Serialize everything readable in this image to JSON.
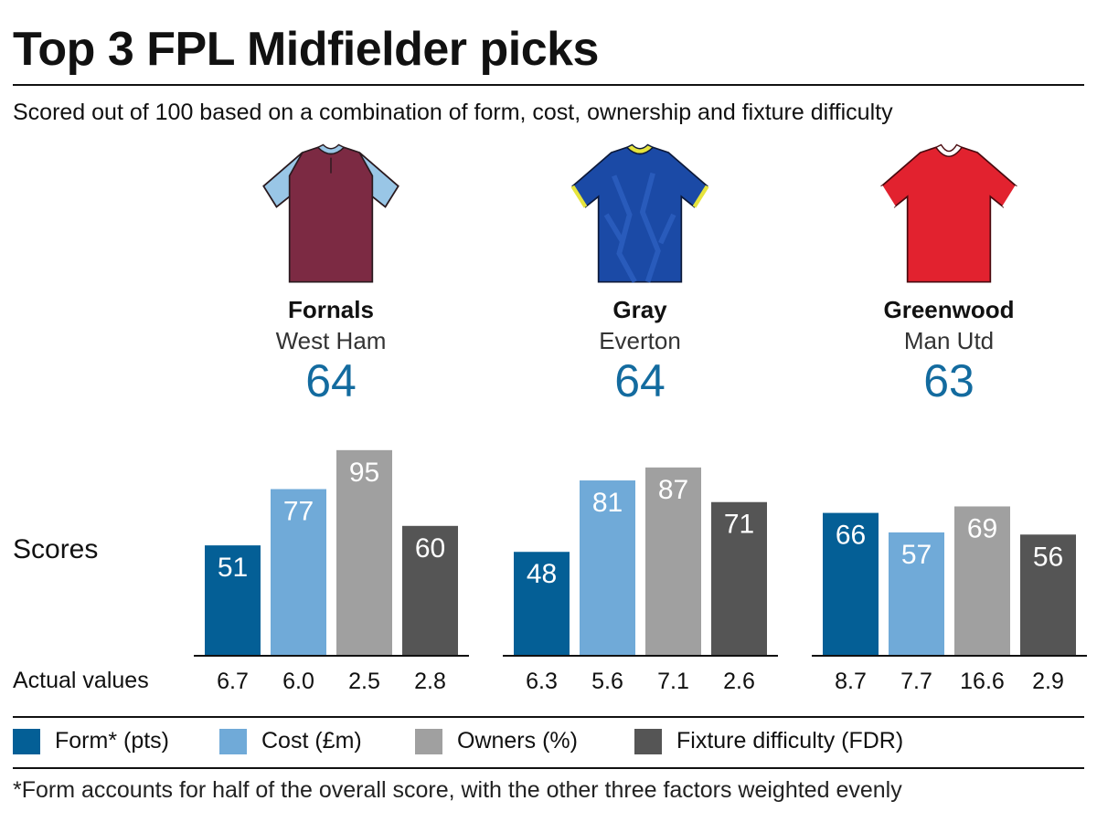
{
  "title": "Top 3 FPL Midfielder picks",
  "subtitle": "Scored out of 100 based on a combination of form, cost, ownership and fixture difficulty",
  "players": [
    {
      "name": "Fornals",
      "team": "West Ham",
      "score": "64",
      "shirt": "west-ham-shirt"
    },
    {
      "name": "Gray",
      "team": "Everton",
      "score": "64",
      "shirt": "everton-shirt"
    },
    {
      "name": "Greenwood",
      "team": "Man Utd",
      "score": "63",
      "shirt": "man-utd-shirt"
    }
  ],
  "row_labels": {
    "scores": "Scores",
    "actual": "Actual values"
  },
  "colors": {
    "form": "#045f96",
    "cost": "#70aad8",
    "owners": "#a0a0a0",
    "fixture": "#555555",
    "accent": "#136b9f",
    "west_ham": "#7c2a43",
    "west_ham_sleeve": "#99c6e6",
    "everton": "#1b4aa6",
    "everton_trim": "#e6e43d",
    "man_utd": "#e2222f"
  },
  "legend": [
    {
      "key": "form",
      "label": "Form* (pts)"
    },
    {
      "key": "cost",
      "label": "Cost (£m)"
    },
    {
      "key": "owners",
      "label": "Owners (%)"
    },
    {
      "key": "fixture",
      "label": "Fixture difficulty (FDR)"
    }
  ],
  "footnote": "*Form accounts for half of the overall score, with the other three factors weighted evenly",
  "chart_data": {
    "type": "bar",
    "title": "Scores",
    "categories": [
      "Form* (pts)",
      "Cost (£m)",
      "Owners (%)",
      "Fixture difficulty (FDR)"
    ],
    "series": [
      {
        "name": "Fornals",
        "values": [
          51,
          77,
          95,
          60
        ],
        "actual": [
          "6.7",
          "6.0",
          "2.5",
          "2.8"
        ]
      },
      {
        "name": "Gray",
        "values": [
          48,
          81,
          87,
          71
        ],
        "actual": [
          "6.3",
          "5.6",
          "7.1",
          "2.6"
        ]
      },
      {
        "name": "Greenwood",
        "values": [
          66,
          57,
          69,
          56
        ],
        "actual": [
          "8.7",
          "7.7",
          "16.6",
          "2.9"
        ]
      }
    ],
    "ylim": [
      0,
      100
    ],
    "grid": false,
    "legend_position": "bottom"
  }
}
